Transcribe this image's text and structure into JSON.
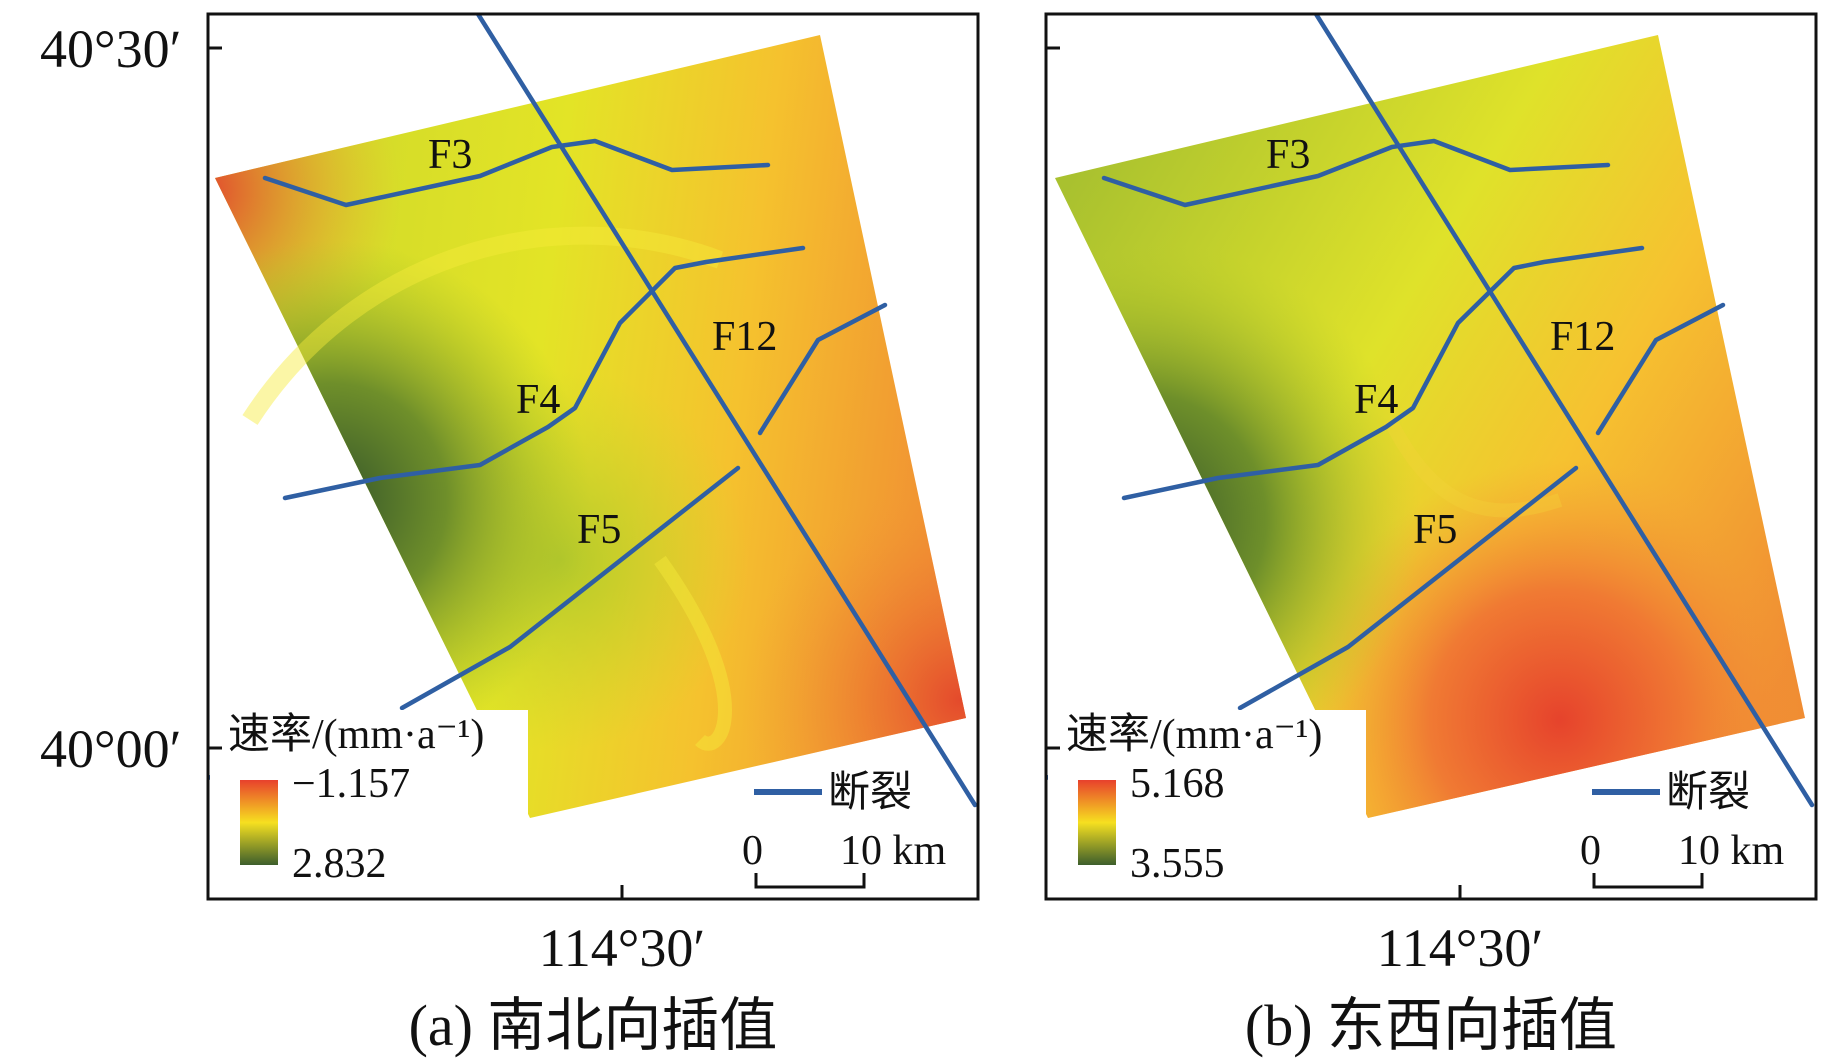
{
  "axes": {
    "lat_top": "40°30′",
    "lat_bottom": "40°00′",
    "lon_mid": "114°30′"
  },
  "panels": [
    {
      "id": "a",
      "caption": "(a) 南北向插值",
      "legend_title": "速率/(mm·a⁻¹)",
      "legend_max": "−1.157",
      "legend_min": "2.832",
      "fault_label": "断裂",
      "scale_start": "0",
      "scale_end": "10 km",
      "faults": [
        "F3",
        "F4",
        "F5",
        "F12"
      ]
    },
    {
      "id": "b",
      "caption": "(b) 东西向插值",
      "legend_title": "速率/(mm·a⁻¹)",
      "legend_max": "5.168",
      "legend_min": "3.555",
      "fault_label": "断裂",
      "scale_start": "0",
      "scale_end": "10 km",
      "faults": [
        "F3",
        "F4",
        "F5",
        "F12"
      ]
    }
  ],
  "colors": {
    "fault": "#2f5fa3",
    "high": "#e8412c",
    "mid": "#f6e020",
    "low": "#3d5e2c"
  }
}
